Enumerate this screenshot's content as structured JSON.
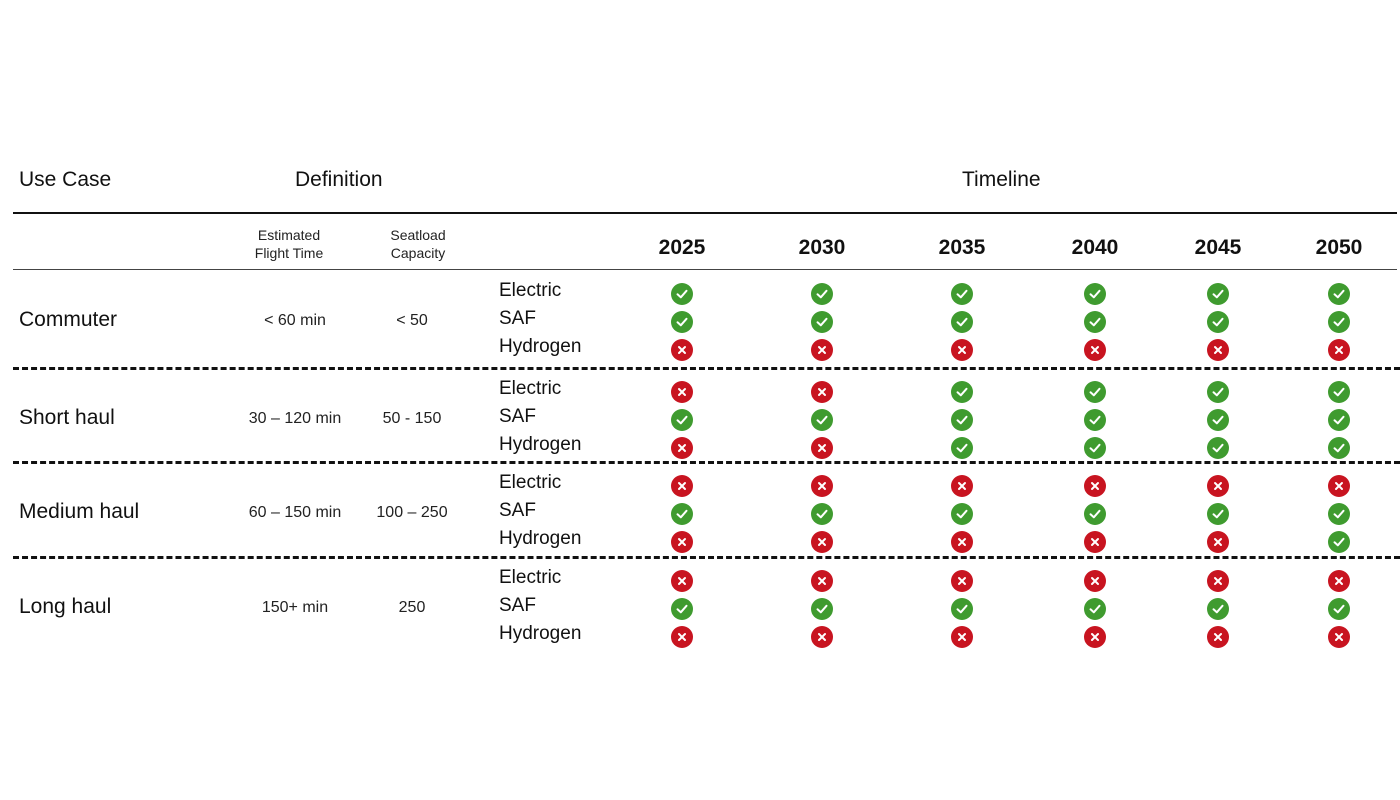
{
  "header": {
    "use_case": "Use Case",
    "definition": "Definition",
    "timeline": "Timeline"
  },
  "subheaders": {
    "flight_time_line1": "Estimated",
    "flight_time_line2": "Flight Time",
    "seatload_line1": "Seatload",
    "seatload_line2": "Capacity"
  },
  "years": [
    "2025",
    "2030",
    "2035",
    "2040",
    "2045",
    "2050"
  ],
  "technologies": [
    "Electric",
    "SAF",
    "Hydrogen"
  ],
  "colors": {
    "available": "#3f9b2f",
    "unavailable": "#c81420"
  },
  "use_cases": [
    {
      "name": "Commuter",
      "flight_time": "< 60 min",
      "seatload": "< 50",
      "availability": {
        "Electric": [
          true,
          true,
          true,
          true,
          true,
          true
        ],
        "SAF": [
          true,
          true,
          true,
          true,
          true,
          true
        ],
        "Hydrogen": [
          false,
          false,
          false,
          false,
          false,
          false
        ]
      }
    },
    {
      "name": "Short haul",
      "flight_time": "30 – 120 min",
      "seatload": "50 - 150",
      "availability": {
        "Electric": [
          false,
          false,
          true,
          true,
          true,
          true
        ],
        "SAF": [
          true,
          true,
          true,
          true,
          true,
          true
        ],
        "Hydrogen": [
          false,
          false,
          true,
          true,
          true,
          true
        ]
      }
    },
    {
      "name": "Medium haul",
      "flight_time": "60 – 150 min",
      "seatload": "100 – 250",
      "availability": {
        "Electric": [
          false,
          false,
          false,
          false,
          false,
          false
        ],
        "SAF": [
          true,
          true,
          true,
          true,
          true,
          true
        ],
        "Hydrogen": [
          false,
          false,
          false,
          false,
          false,
          true
        ]
      }
    },
    {
      "name": "Long haul",
      "flight_time": "150+ min",
      "seatload": "250",
      "availability": {
        "Electric": [
          false,
          false,
          false,
          false,
          false,
          false
        ],
        "SAF": [
          true,
          true,
          true,
          true,
          true,
          true
        ],
        "Hydrogen": [
          false,
          false,
          false,
          false,
          false,
          false
        ]
      }
    }
  ],
  "icons": {
    "available": "check-icon",
    "unavailable": "cross-icon"
  }
}
